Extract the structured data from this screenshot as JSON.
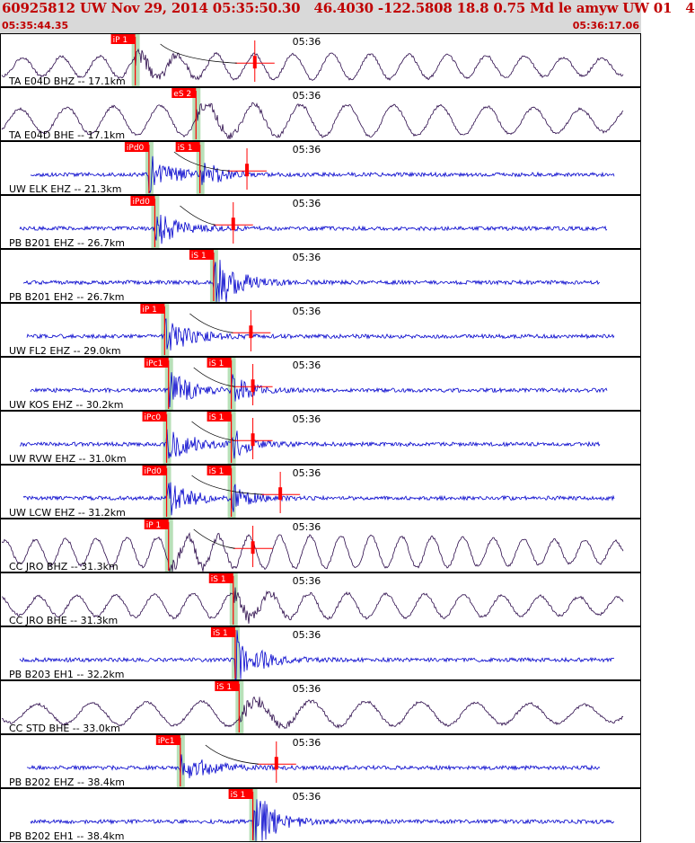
{
  "header": {
    "title": "60925812 UW Nov 29, 2014 05:35:50.30   46.4030 -122.5808 18.8 0.75 Md le amyw UW 01   4",
    "start_time": "05:35:44.35",
    "end_time": "05:36:17.06"
  },
  "colors": {
    "header_bg": "#d9d9d9",
    "header_text": "#c00000",
    "trace_short_period": "#0000cc",
    "trace_broadband": "#2b0a4a",
    "pick_box": "#ff0000",
    "pick_window": "#b8e0b8",
    "panel_border": "#000000"
  },
  "chart_data": {
    "type": "line",
    "time_tick_label": "05:36",
    "time_tick_position_s": 15.65,
    "duration_s": 32.71,
    "traces": [
      {
        "label": "TA E04D BHZ -- 17.1km",
        "kind": "broadband",
        "seed": 1,
        "arrival_s": 6.9,
        "p_pick": "iP 1",
        "p_time_s": 6.9,
        "s_pick": "",
        "s_time_s": 0,
        "coda_end_s": 13.0
      },
      {
        "label": "TA E04D BHE -- 17.1km",
        "kind": "broadband",
        "seed": 2,
        "arrival_s": 10.0,
        "p_pick": "",
        "p_time_s": 0,
        "s_pick": "eS 2",
        "s_time_s": 10.0,
        "coda_end_s": 0
      },
      {
        "label": "UW ELK EHZ -- 21.3km",
        "kind": "short",
        "seed": 3,
        "arrival_s": 7.6,
        "p_pick": "iPd0",
        "p_time_s": 7.6,
        "s_pick": "iS 1",
        "s_time_s": 10.2,
        "coda_end_s": 12.6
      },
      {
        "label": "PB B201 EHZ -- 26.7km",
        "kind": "short",
        "seed": 4,
        "arrival_s": 7.9,
        "p_pick": "iPd0",
        "p_time_s": 7.9,
        "s_pick": "",
        "s_time_s": 0,
        "coda_end_s": 11.9
      },
      {
        "label": "PB B201 EH2 -- 26.7km",
        "kind": "short",
        "seed": 5,
        "arrival_s": 10.9,
        "p_pick": "",
        "p_time_s": 0,
        "s_pick": "iS 1",
        "s_time_s": 10.9,
        "coda_end_s": 0
      },
      {
        "label": "UW FL2 EHZ -- 29.0km",
        "kind": "short",
        "seed": 6,
        "arrival_s": 8.4,
        "p_pick": "iP 1",
        "p_time_s": 8.4,
        "s_pick": "",
        "s_time_s": 0,
        "coda_end_s": 12.8
      },
      {
        "label": "UW KOS EHZ -- 30.2km",
        "kind": "short",
        "seed": 7,
        "arrival_s": 8.6,
        "p_pick": "iPc1",
        "p_time_s": 8.6,
        "s_pick": "iS 1",
        "s_time_s": 11.8,
        "coda_end_s": 12.9
      },
      {
        "label": "UW RVW EHZ -- 31.0km",
        "kind": "short",
        "seed": 8,
        "arrival_s": 8.5,
        "p_pick": "iPc0",
        "p_time_s": 8.5,
        "s_pick": "iS 1",
        "s_time_s": 11.8,
        "coda_end_s": 12.9
      },
      {
        "label": "UW LCW EHZ -- 31.2km",
        "kind": "short",
        "seed": 9,
        "arrival_s": 8.5,
        "p_pick": "iPd0",
        "p_time_s": 8.5,
        "s_pick": "iS 1",
        "s_time_s": 11.8,
        "coda_end_s": 14.3
      },
      {
        "label": "CC JRO BHZ -- 31.3km",
        "kind": "broadband",
        "seed": 10,
        "arrival_s": 8.6,
        "p_pick": "iP 1",
        "p_time_s": 8.6,
        "s_pick": "",
        "s_time_s": 0,
        "coda_end_s": 12.9
      },
      {
        "label": "CC JRO BHE -- 31.3km",
        "kind": "broadband",
        "seed": 11,
        "arrival_s": 11.9,
        "p_pick": "",
        "p_time_s": 0,
        "s_pick": "iS 1",
        "s_time_s": 11.9,
        "coda_end_s": 0
      },
      {
        "label": "PB B203 EH1 -- 32.2km",
        "kind": "short",
        "seed": 12,
        "arrival_s": 12.0,
        "p_pick": "",
        "p_time_s": 0,
        "s_pick": "iS 1",
        "s_time_s": 12.0,
        "coda_end_s": 0
      },
      {
        "label": "CC STD BHE -- 33.0km",
        "kind": "broadband",
        "seed": 13,
        "arrival_s": 12.2,
        "p_pick": "",
        "p_time_s": 0,
        "s_pick": "iS 1",
        "s_time_s": 12.2,
        "coda_end_s": 0
      },
      {
        "label": "PB B202 EHZ -- 38.4km",
        "kind": "short",
        "seed": 14,
        "arrival_s": 9.2,
        "p_pick": "iPc1",
        "p_time_s": 9.2,
        "s_pick": "",
        "s_time_s": 0,
        "coda_end_s": 14.1
      },
      {
        "label": "PB B202 EH1 -- 38.4km",
        "kind": "short",
        "seed": 15,
        "arrival_s": 12.9,
        "p_pick": "",
        "p_time_s": 0,
        "s_pick": "iS 1",
        "s_time_s": 12.9,
        "coda_end_s": 0
      }
    ]
  }
}
